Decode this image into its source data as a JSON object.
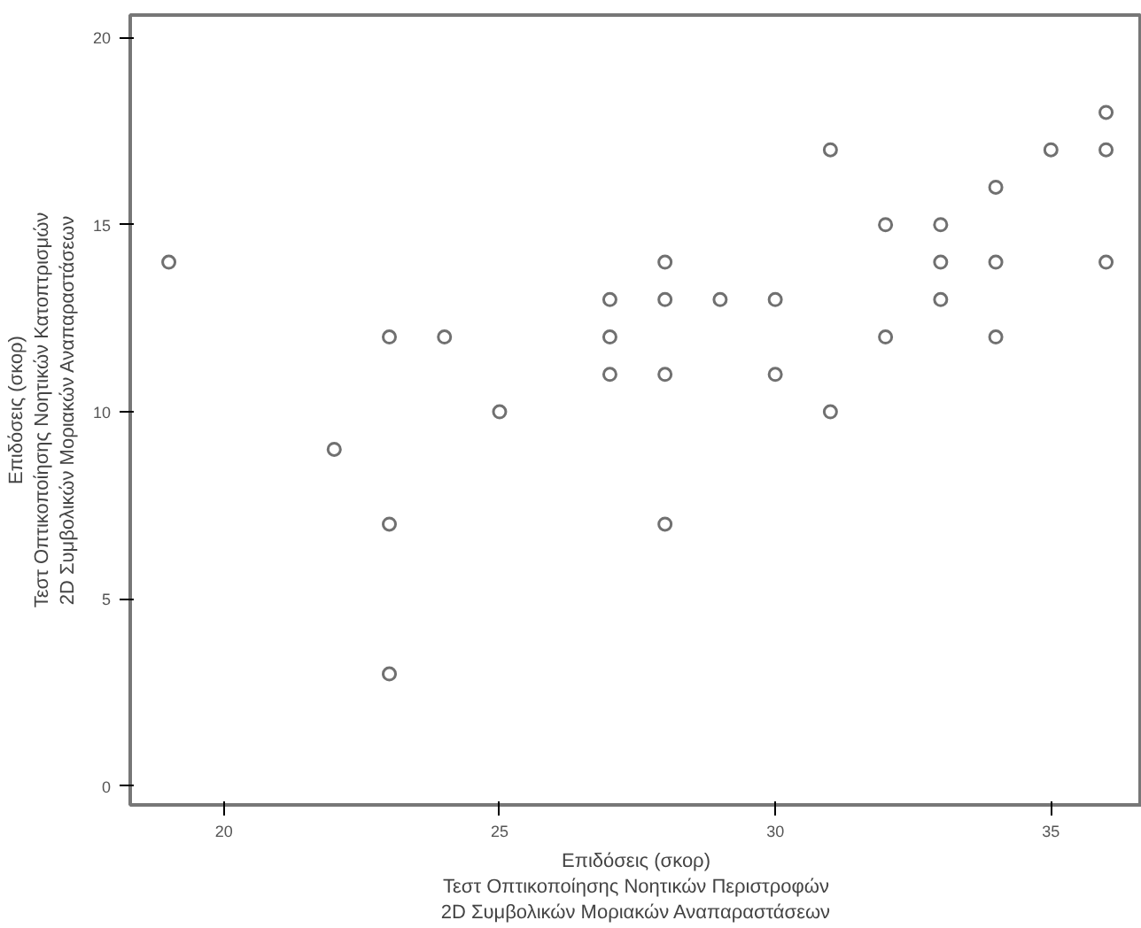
{
  "chart_data": {
    "type": "scatter",
    "xlabel": "Επιδόσεις (σκορ)\nΤεστ Οπτικοποίησης Νοητικών Περιστροφών\n2D Συμβολικών Μοριακών Αναπαραστάσεων",
    "ylabel": "Επιδόσεις (σκορ)\nΤεστ Οπτικοποίησης Νοητικών Κατοπτρισμών\n2D Συμβολικών Μοριακών Αναπαραστάσεων",
    "x": [
      19,
      22,
      23,
      23,
      23,
      24,
      25,
      27,
      27,
      27,
      28,
      28,
      28,
      28,
      29,
      30,
      30,
      31,
      31,
      32,
      32,
      33,
      33,
      33,
      34,
      34,
      34,
      35,
      36,
      36,
      36
    ],
    "values": [
      14,
      9,
      12,
      7,
      3,
      12,
      10,
      13,
      12,
      11,
      14,
      13,
      11,
      7,
      13,
      13,
      11,
      17,
      10,
      15,
      12,
      15,
      14,
      13,
      16,
      14,
      12,
      17,
      18,
      17,
      14
    ],
    "color": "#707070",
    "marker": "circle",
    "xlim": [
      18.3,
      36.65
    ],
    "ylim": [
      -0.5,
      20.6
    ],
    "xticks": [
      20,
      25,
      30,
      35
    ],
    "yticks": [
      0,
      5,
      10,
      15,
      20
    ],
    "grid": false
  }
}
